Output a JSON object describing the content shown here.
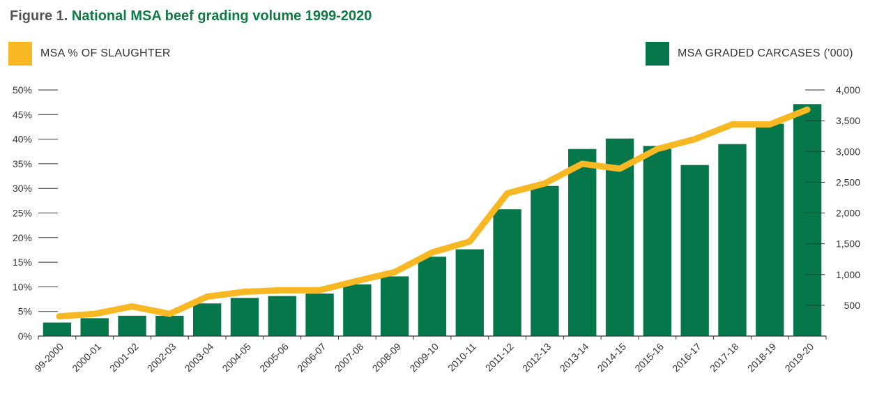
{
  "figure": {
    "prefix": "Figure 1.",
    "title": "National MSA beef grading volume 1999-2020"
  },
  "legend": {
    "line_label": "MSA % OF SLAUGHTER",
    "bar_label": "MSA GRADED CARCASES ('000)"
  },
  "colors": {
    "bar": "#06774a",
    "line": "#f7b824",
    "title_prefix": "#555555",
    "title_main": "#0f7a45"
  },
  "chart_data": {
    "type": "bar",
    "categories": [
      "99-2000",
      "2000-01",
      "2001-02",
      "2002-03",
      "2003-04",
      "2004-05",
      "2005-06",
      "2006-07",
      "2007-08",
      "2008-09",
      "2009-10",
      "2010-11",
      "2011-12",
      "2012-13",
      "2013-14",
      "2014-15",
      "2015-16",
      "2016-17",
      "2017-18",
      "2018-19",
      "2019-20"
    ],
    "series": [
      {
        "name": "MSA GRADED CARCASES ('000)",
        "type": "bar",
        "axis": "right",
        "values": [
          220,
          290,
          330,
          330,
          530,
          620,
          650,
          690,
          840,
          970,
          1290,
          1410,
          2060,
          2440,
          3040,
          3210,
          3090,
          2780,
          3120,
          3450,
          3770
        ]
      },
      {
        "name": "MSA % OF SLAUGHTER",
        "type": "line",
        "axis": "left",
        "values": [
          4,
          4.5,
          6,
          4.5,
          8,
          9,
          9.3,
          9.3,
          11.2,
          13,
          17,
          19.2,
          29,
          31,
          35,
          34,
          38,
          40,
          43,
          43,
          46
        ]
      }
    ],
    "y_left": {
      "ylim": [
        0,
        50
      ],
      "ticks": [
        0,
        5,
        10,
        15,
        20,
        25,
        30,
        35,
        40,
        45,
        50
      ],
      "tick_labels": [
        "0%",
        "5%",
        "10%",
        "15%",
        "20%",
        "25%",
        "30%",
        "35%",
        "40%",
        "45%",
        "50%"
      ]
    },
    "y_right": {
      "ylim": [
        0,
        4000
      ],
      "ticks": [
        500,
        1000,
        1500,
        2000,
        2500,
        3000,
        3500,
        4000
      ],
      "tick_labels": [
        "500",
        "1,000",
        "1,500",
        "2,000",
        "2,500",
        "3,000",
        "3,500",
        "4,000"
      ]
    },
    "grid": false,
    "legend_position": "top"
  }
}
